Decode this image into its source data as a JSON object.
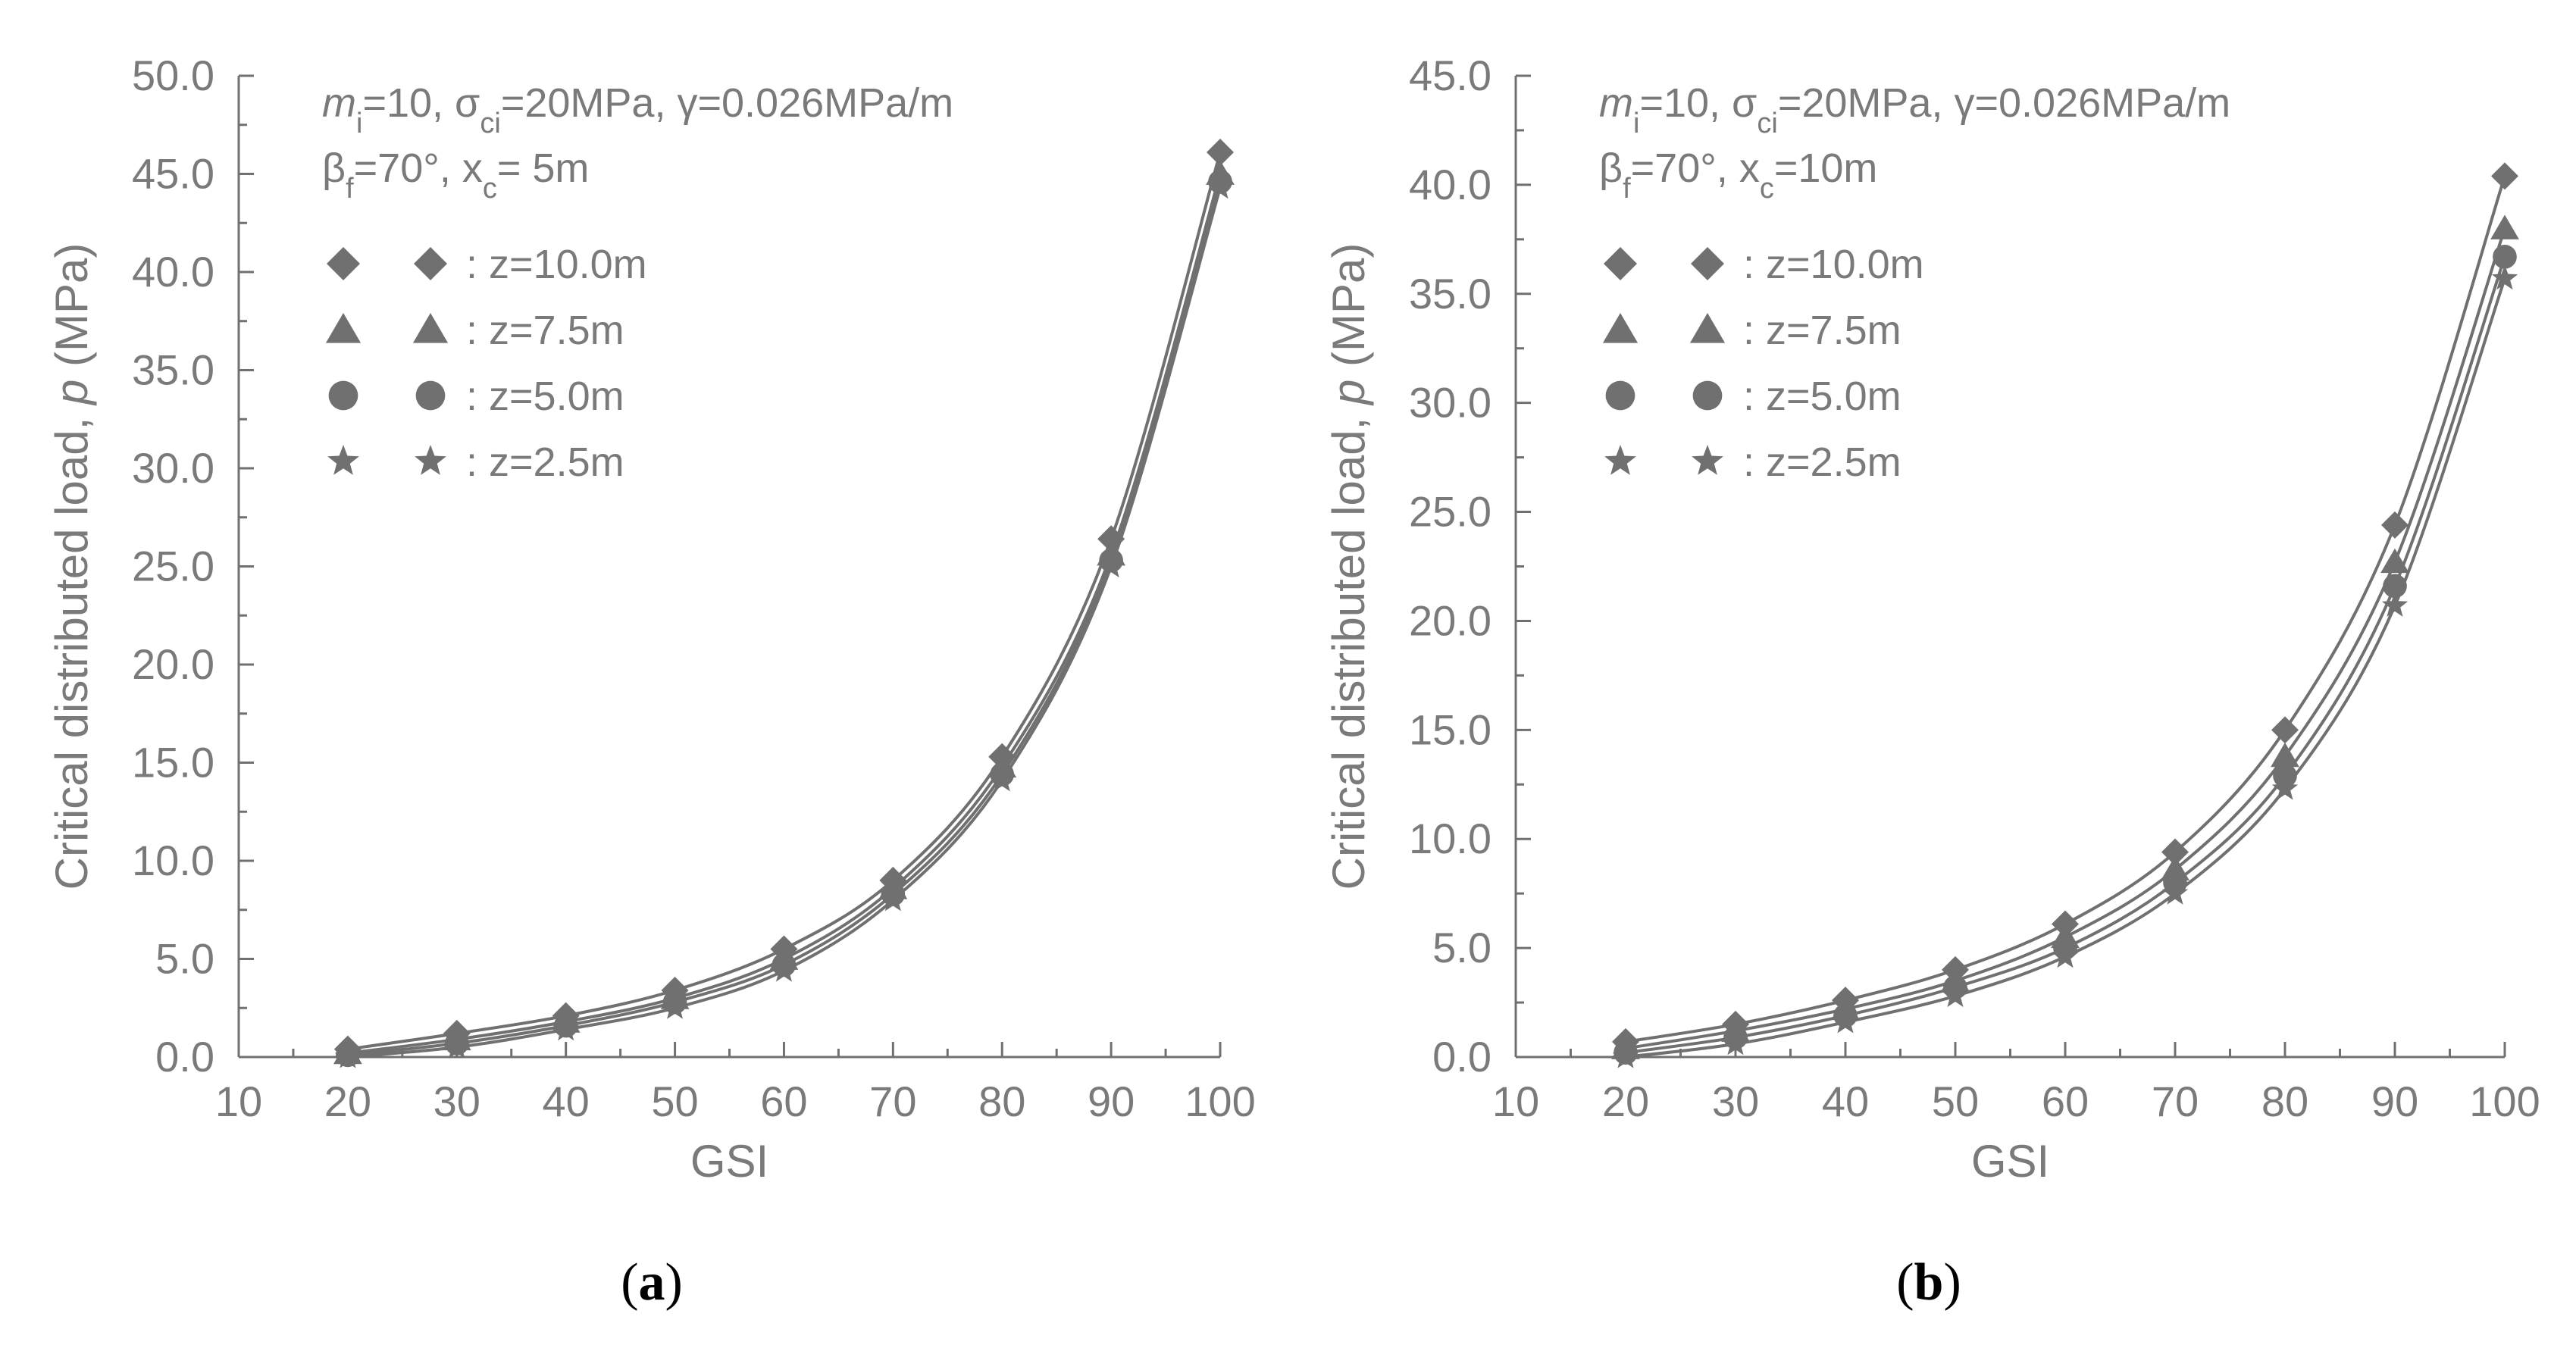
{
  "colors": {
    "ink": "#707070",
    "text": "#7a7a7a",
    "caption": "#000000"
  },
  "chart_data": [
    {
      "type": "line",
      "caption_letter": "a",
      "xlabel": "GSI",
      "ylabel_prefix": "Critical distributed load, ",
      "ylabel_var": "p",
      "ylabel_unit": " (MPa)",
      "xlim": [
        10,
        100
      ],
      "ylim": [
        0,
        50
      ],
      "xticks": [
        "10",
        "20",
        "30",
        "40",
        "50",
        "60",
        "70",
        "80",
        "90",
        "100"
      ],
      "yticks": [
        "0.0",
        "5.0",
        "10.0",
        "15.0",
        "20.0",
        "25.0",
        "30.0",
        "35.0",
        "40.0",
        "45.0",
        "50.0"
      ],
      "annotation": {
        "m": "m",
        "m_sub": "i",
        "m_val": "=10, ",
        "sigma": "σ",
        "sigma_sub": "ci",
        "sigma_val": "=20MPa, ",
        "gamma": "γ=0.026MPa/m",
        "beta": "β",
        "beta_sub": "f",
        "beta_val": "=70°, ",
        "x": "x",
        "x_sub": "c",
        "x_val": "= 5m"
      },
      "x": [
        20,
        30,
        40,
        50,
        60,
        70,
        80,
        90,
        100
      ],
      "series": [
        {
          "name": ": z=10.0m",
          "marker": "diamond",
          "values": [
            0.4,
            1.2,
            2.1,
            3.4,
            5.5,
            9.0,
            15.3,
            26.4,
            46.1
          ]
        },
        {
          "name": ": z=7.5m",
          "marker": "triangle",
          "values": [
            0.2,
            0.9,
            1.8,
            3.0,
            5.0,
            8.6,
            14.8,
            25.6,
            45.0
          ]
        },
        {
          "name": ": z=5.0m",
          "marker": "circle",
          "values": [
            0.1,
            0.7,
            1.6,
            2.8,
            4.7,
            8.3,
            14.4,
            25.3,
            44.6
          ]
        },
        {
          "name": ": z=2.5m",
          "marker": "star",
          "values": [
            0.0,
            0.5,
            1.4,
            2.5,
            4.4,
            8.0,
            14.1,
            25.0,
            44.3
          ]
        }
      ]
    },
    {
      "type": "line",
      "caption_letter": "b",
      "xlabel": "GSI",
      "ylabel_prefix": "Critical distributed load, ",
      "ylabel_var": "p",
      "ylabel_unit": " (MPa)",
      "xlim": [
        10,
        100
      ],
      "ylim": [
        0,
        45
      ],
      "xticks": [
        "10",
        "20",
        "30",
        "40",
        "50",
        "60",
        "70",
        "80",
        "90",
        "100"
      ],
      "yticks": [
        "0.0",
        "5.0",
        "10.0",
        "15.0",
        "20.0",
        "25.0",
        "30.0",
        "35.0",
        "40.0",
        "45.0"
      ],
      "annotation": {
        "m": "m",
        "m_sub": "i",
        "m_val": "=10, ",
        "sigma": "σ",
        "sigma_sub": "ci",
        "sigma_val": "=20MPa, ",
        "gamma": "γ=0.026MPa/m",
        "beta": "β",
        "beta_sub": "f",
        "beta_val": "=70°, ",
        "x": "x",
        "x_sub": "c",
        "x_val": "=10m"
      },
      "x": [
        20,
        30,
        40,
        50,
        60,
        70,
        80,
        90,
        100
      ],
      "series": [
        {
          "name": ": z=10.0m",
          "marker": "diamond",
          "values": [
            0.7,
            1.5,
            2.6,
            4.0,
            6.1,
            9.4,
            15.0,
            24.4,
            40.4
          ]
        },
        {
          "name": ": z=7.5m",
          "marker": "triangle",
          "values": [
            0.4,
            1.2,
            2.2,
            3.5,
            5.5,
            8.6,
            13.8,
            22.7,
            38.0
          ]
        },
        {
          "name": ": z=5.0m",
          "marker": "circle",
          "values": [
            0.2,
            0.9,
            1.9,
            3.2,
            5.0,
            8.0,
            12.9,
            21.6,
            36.7
          ]
        },
        {
          "name": ": z=2.5m",
          "marker": "star",
          "values": [
            0.0,
            0.6,
            1.6,
            2.8,
            4.6,
            7.5,
            12.3,
            20.7,
            35.7
          ]
        }
      ]
    }
  ]
}
